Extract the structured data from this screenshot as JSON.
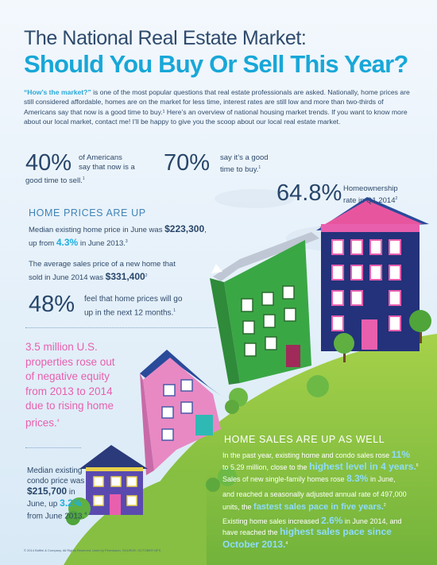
{
  "title": {
    "line1": "The National Real Estate Market:",
    "line2": "Should You Buy Or Sell This Year?"
  },
  "intro": {
    "lead": "“How’s the market?”",
    "text": " is one of the most popular questions that real estate professionals are asked. Nationally, home prices are still considered affordable, homes are on the market for less time, interest rates are still low and more than two-thirds of Americans say that now is a good time to buy.¹ Here’s an overview of national housing market trends. If you want to know more about our local market, contact me! I’ll be happy to give you the scoop about our local real estate market."
  },
  "stats": {
    "sell_pct": "40%",
    "sell_text1": "of Americans",
    "sell_text2": "say that now is a",
    "sell_text3": "good time to sell.",
    "sell_sup": "1",
    "buy_pct": "70%",
    "buy_text1": "say it’s a good",
    "buy_text2": "time to buy.",
    "buy_sup": "1",
    "own_pct": "64.8%",
    "own_text1": "Homeownership",
    "own_text2": "rate in Q1 2014",
    "own_sup": "2"
  },
  "home_prices": {
    "heading": "HOME PRICES ARE UP",
    "median_text1": "Median existing home price in June was ",
    "median_value": "$223,300",
    "median_text2": "up from ",
    "median_pct": "4.3%",
    "median_text3": " in June 2013.",
    "median_sup": "3",
    "avg_text1": "The average sales price of a new home that",
    "avg_text2": "sold in June 2014 was ",
    "avg_value": "$331,400",
    "avg_sup": "2",
    "expect_pct": "48%",
    "expect_text1": "feel that home prices will go",
    "expect_text2": "up in the next 12 months.",
    "expect_sup": "1"
  },
  "equity": {
    "line1": "3.5 million U.S.",
    "line2": "properties rose out",
    "line3": "of negative equity",
    "line4": "from 2013 to 2014",
    "line5": "due to rising home",
    "line6": "prices.",
    "sup": "4"
  },
  "condo": {
    "line1": "Median existing",
    "line2": "condo price was",
    "value": "$215,700",
    "line3": " in",
    "line4a": "June, up ",
    "pct": "3.2%",
    "line5": "from June 2013.",
    "sup": "4"
  },
  "home_sales": {
    "heading": "HOME SALES ARE UP AS WELL",
    "p1_text1": "In the past year, existing home and condo sales rose ",
    "p1_pct": "11%",
    "p1_text2": "to 5.29 million, close to the ",
    "p1_high": "highest level in 4 years.",
    "p1_sup": "6",
    "p2_text1": "Sales of new single-family homes rose ",
    "p2_pct": "8.3%",
    "p2_text2": " in June,",
    "p2_text3": "and reached a seasonally adjusted annual rate of 497,000",
    "p2_text4": "units, the ",
    "p2_high": "fastest sales pace in five years.",
    "p2_sup": "2",
    "p3_text1": "Existing home sales increased ",
    "p3_pct": "2.6%",
    "p3_text2": " in June 2014, and",
    "p3_text3": "have reached the ",
    "p3_high1": "highest sales pace since",
    "p3_high2": "October 2013.",
    "p3_sup": "4"
  },
  "footer": "© 2014 Buffini & Company. All Rights Reserved. Used by Permission. SOURCE: OCTOBER NFS",
  "colors": {
    "title_blue": "#18a7d8",
    "navy": "#28466a",
    "pink": "#e85fae",
    "accent_blue": "#1eaee0",
    "grass": "#8cc63f"
  }
}
